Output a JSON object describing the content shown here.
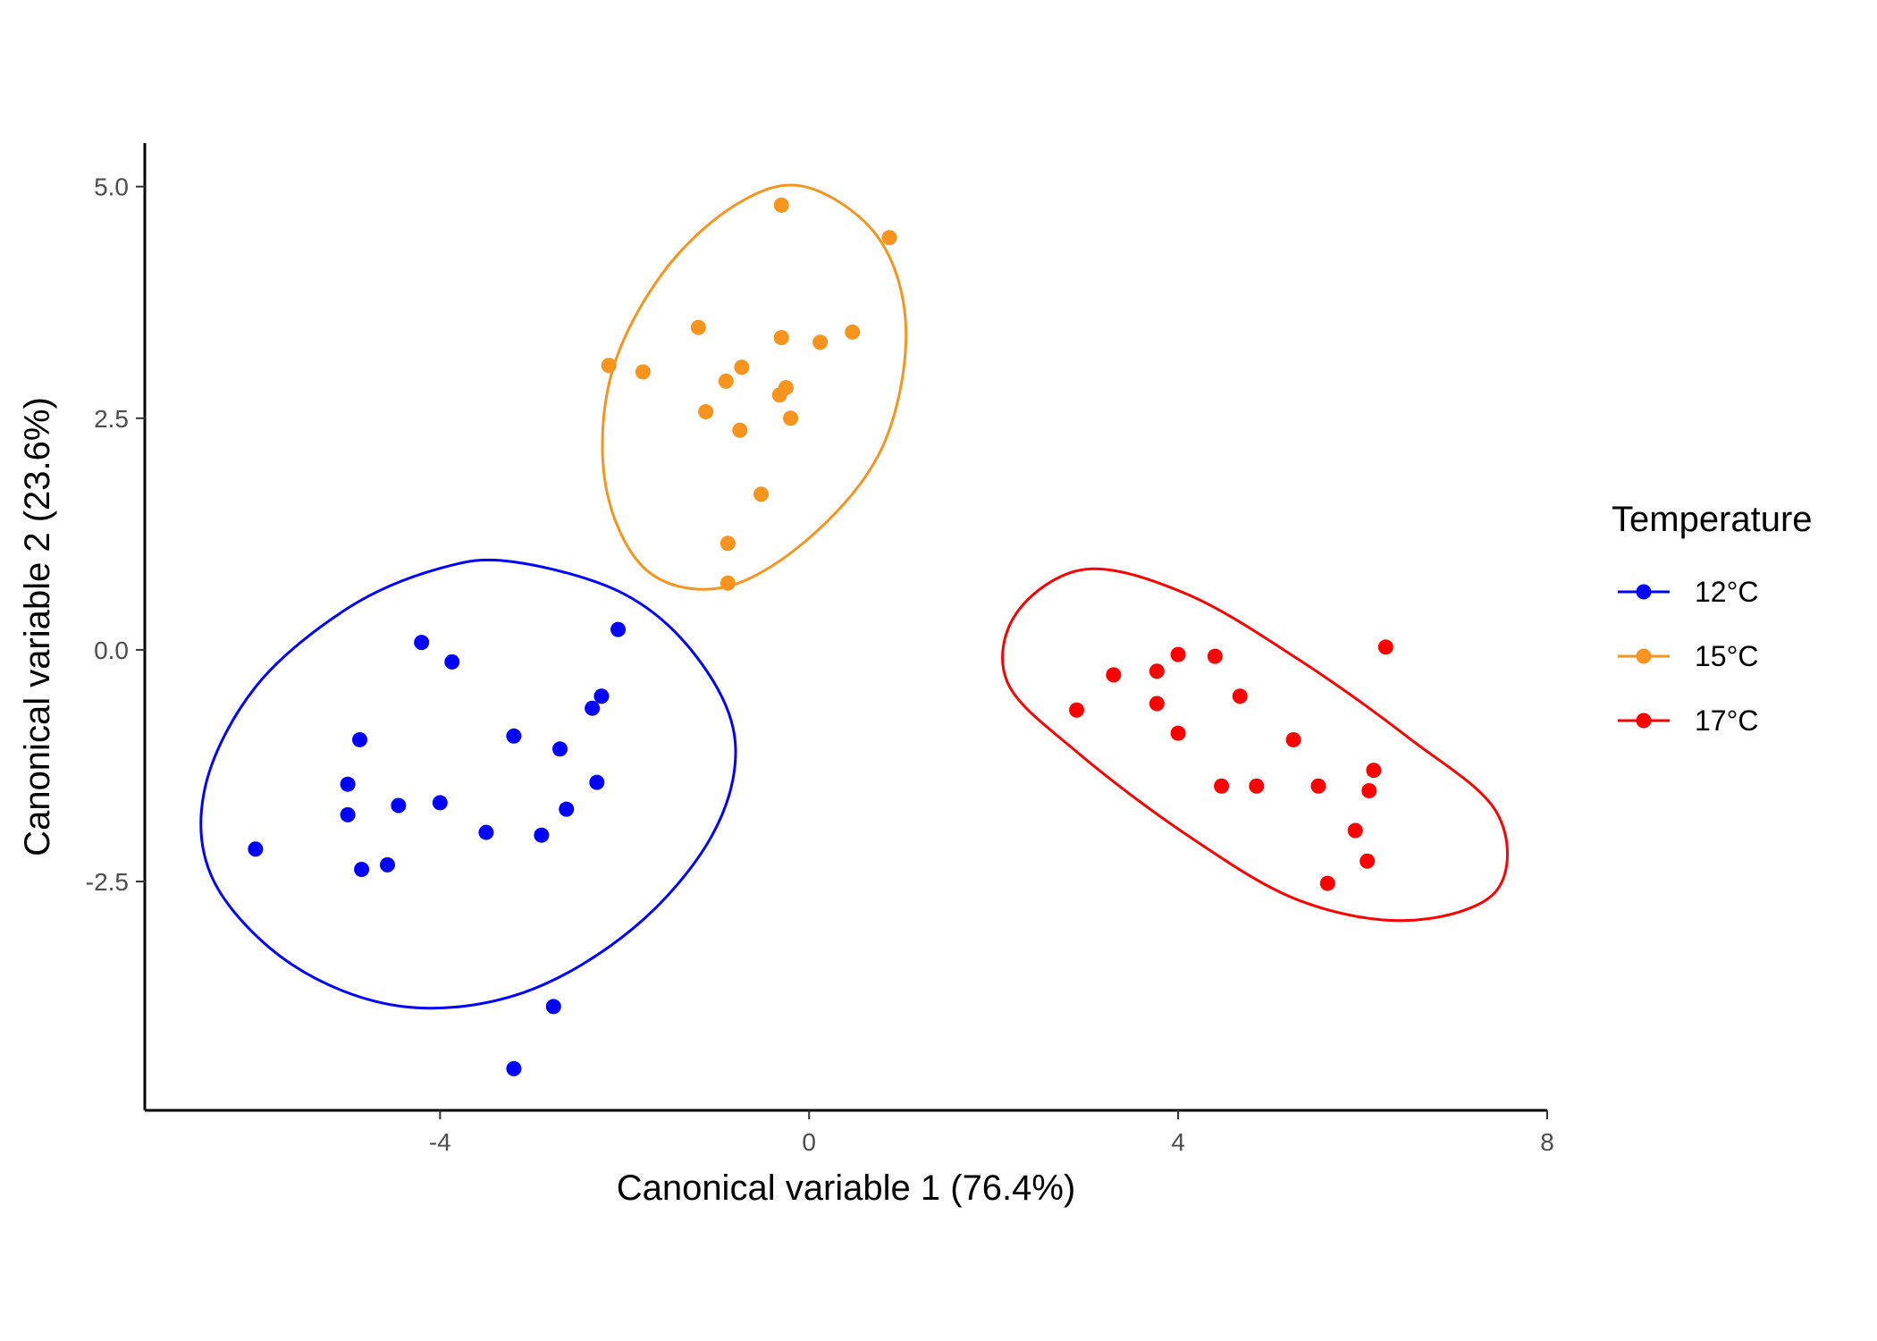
{
  "chart_data": {
    "type": "scatter",
    "xlabel": "Canonical variable 1 (76.4%)",
    "ylabel": "Canonical variable 2 (23.6%)",
    "xlim": [
      -7.2,
      8.0
    ],
    "ylim": [
      -4.97,
      5.47
    ],
    "x_ticks": [
      -4,
      0,
      4,
      8
    ],
    "x_tick_labels": [
      "-4",
      "0",
      "4",
      "8"
    ],
    "y_ticks": [
      -2.5,
      0.0,
      2.5,
      5.0
    ],
    "y_tick_labels": [
      "-2.5",
      "0.0",
      "2.5",
      "5.0"
    ],
    "grid": false,
    "legend": {
      "title": "Temperature",
      "position": "right"
    },
    "series": [
      {
        "name": "12°C",
        "color": "#0000ff",
        "ellipse": true,
        "points": [
          [
            -6.0,
            -2.15
          ],
          [
            -5.0,
            -1.45
          ],
          [
            -5.0,
            -1.78
          ],
          [
            -4.87,
            -0.97
          ],
          [
            -4.85,
            -2.37
          ],
          [
            -4.57,
            -2.32
          ],
          [
            -4.45,
            -1.68
          ],
          [
            -4.2,
            0.08
          ],
          [
            -4.0,
            -1.65
          ],
          [
            -3.87,
            -0.13
          ],
          [
            -3.5,
            -1.97
          ],
          [
            -3.2,
            -0.93
          ],
          [
            -3.2,
            -4.52
          ],
          [
            -2.9,
            -2.0
          ],
          [
            -2.77,
            -3.85
          ],
          [
            -2.7,
            -1.07
          ],
          [
            -2.63,
            -1.72
          ],
          [
            -2.35,
            -0.63
          ],
          [
            -2.3,
            -1.43
          ],
          [
            -2.25,
            -0.5
          ],
          [
            -2.07,
            0.22
          ]
        ],
        "ellipse_path": [
          [
            -3.2,
            0.95
          ],
          [
            -2.0,
            0.6
          ],
          [
            -1.2,
            -0.1
          ],
          [
            -0.8,
            -1.0
          ],
          [
            -1.05,
            -2.0
          ],
          [
            -1.9,
            -3.0
          ],
          [
            -3.1,
            -3.7
          ],
          [
            -4.4,
            -3.85
          ],
          [
            -5.6,
            -3.4
          ],
          [
            -6.45,
            -2.5
          ],
          [
            -6.55,
            -1.5
          ],
          [
            -6.0,
            -0.4
          ],
          [
            -5.0,
            0.45
          ],
          [
            -4.0,
            0.88
          ]
        ]
      },
      {
        "name": "15°C",
        "color": "#f7941d",
        "ellipse": true,
        "points": [
          [
            -2.17,
            3.07
          ],
          [
            -1.8,
            3.0
          ],
          [
            -1.2,
            3.48
          ],
          [
            -1.12,
            2.57
          ],
          [
            -0.9,
            2.9
          ],
          [
            -0.88,
            1.15
          ],
          [
            -0.88,
            0.72
          ],
          [
            -0.75,
            2.37
          ],
          [
            -0.73,
            3.05
          ],
          [
            -0.52,
            1.68
          ],
          [
            -0.32,
            2.75
          ],
          [
            -0.3,
            3.37
          ],
          [
            -0.3,
            4.8
          ],
          [
            -0.25,
            2.83
          ],
          [
            -0.2,
            2.5
          ],
          [
            0.12,
            3.32
          ],
          [
            0.47,
            3.43
          ],
          [
            0.87,
            4.45
          ]
        ],
        "ellipse_path": [
          [
            -0.05,
            5.0
          ],
          [
            0.75,
            4.45
          ],
          [
            1.05,
            3.45
          ],
          [
            0.8,
            2.2
          ],
          [
            0.05,
            1.25
          ],
          [
            -0.9,
            0.68
          ],
          [
            -1.75,
            0.85
          ],
          [
            -2.2,
            1.75
          ],
          [
            -2.15,
            2.95
          ],
          [
            -1.6,
            4.05
          ],
          [
            -0.8,
            4.8
          ]
        ]
      },
      {
        "name": "17°C",
        "color": "#ff0000",
        "ellipse": true,
        "points": [
          [
            2.9,
            -0.65
          ],
          [
            3.3,
            -0.27
          ],
          [
            3.77,
            -0.23
          ],
          [
            3.77,
            -0.58
          ],
          [
            4.0,
            -0.05
          ],
          [
            4.0,
            -0.9
          ],
          [
            4.4,
            -0.07
          ],
          [
            4.47,
            -1.47
          ],
          [
            4.67,
            -0.5
          ],
          [
            4.85,
            -1.47
          ],
          [
            5.25,
            -0.97
          ],
          [
            5.52,
            -1.47
          ],
          [
            5.62,
            -2.52
          ],
          [
            5.92,
            -1.95
          ],
          [
            6.05,
            -2.28
          ],
          [
            6.07,
            -1.52
          ],
          [
            6.12,
            -1.3
          ],
          [
            6.25,
            0.03
          ]
        ],
        "ellipse_path": [
          [
            3.0,
            0.87
          ],
          [
            4.1,
            0.6
          ],
          [
            5.3,
            -0.1
          ],
          [
            6.5,
            -0.95
          ],
          [
            7.45,
            -1.75
          ],
          [
            7.45,
            -2.6
          ],
          [
            6.5,
            -2.92
          ],
          [
            5.3,
            -2.7
          ],
          [
            4.1,
            -2.0
          ],
          [
            2.9,
            -1.1
          ],
          [
            2.15,
            -0.35
          ],
          [
            2.25,
            0.4
          ]
        ]
      }
    ]
  }
}
